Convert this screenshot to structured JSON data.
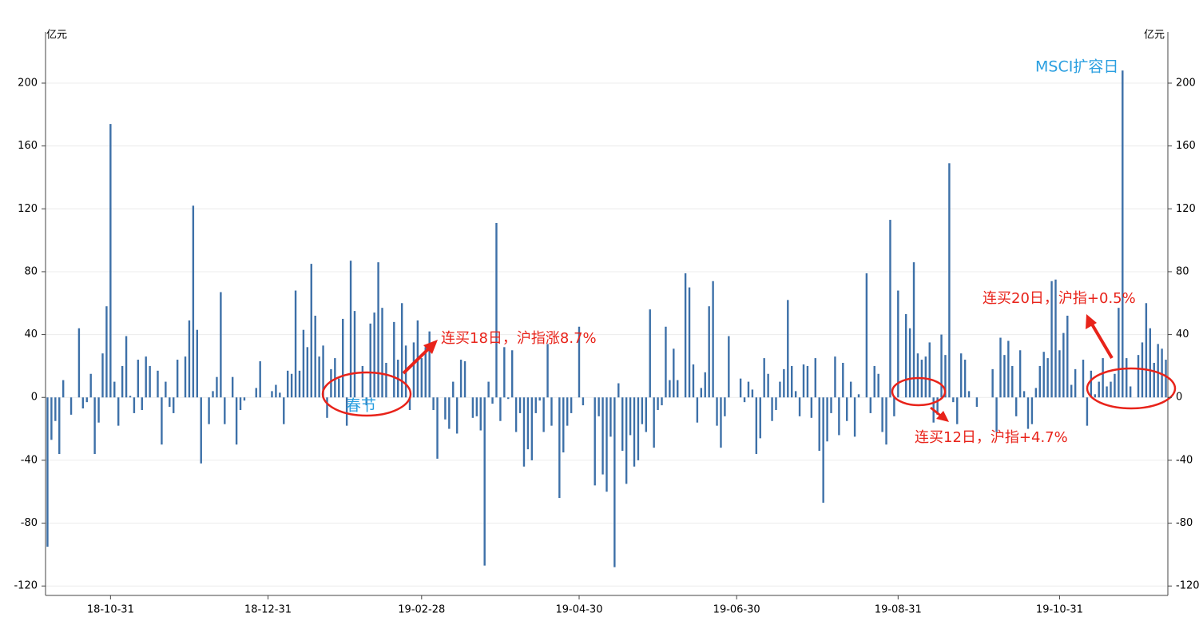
{
  "chart_data": {
    "type": "bar",
    "y_unit": "亿元",
    "color": "#3d70a8",
    "ylim": [
      -126,
      230
    ],
    "yticks": [
      -120,
      -80,
      -40,
      0,
      40,
      80,
      120,
      160,
      200
    ],
    "grid": true,
    "categories": [
      null,
      null,
      null,
      null,
      null,
      null,
      null,
      null,
      null,
      null,
      null,
      null,
      null,
      null,
      null,
      null,
      "18-10-31",
      null,
      null,
      null,
      null,
      null,
      null,
      null,
      null,
      null,
      null,
      null,
      null,
      null,
      null,
      null,
      null,
      null,
      null,
      null,
      null,
      null,
      null,
      null,
      null,
      null,
      null,
      null,
      null,
      null,
      null,
      null,
      null,
      null,
      null,
      null,
      null,
      null,
      null,
      null,
      "18-12-31",
      null,
      null,
      null,
      null,
      null,
      null,
      null,
      null,
      null,
      null,
      null,
      null,
      null,
      null,
      null,
      null,
      null,
      null,
      null,
      null,
      null,
      null,
      null,
      null,
      null,
      null,
      null,
      null,
      null,
      null,
      null,
      null,
      null,
      null,
      null,
      null,
      null,
      null,
      "19-02-28",
      null,
      null,
      null,
      null,
      null,
      null,
      null,
      null,
      null,
      null,
      null,
      null,
      null,
      null,
      null,
      null,
      null,
      null,
      null,
      null,
      null,
      null,
      null,
      null,
      null,
      null,
      null,
      null,
      null,
      null,
      null,
      null,
      null,
      null,
      null,
      null,
      null,
      null,
      null,
      "19-04-30",
      null,
      null,
      null,
      null,
      null,
      null,
      null,
      null,
      null,
      null,
      null,
      null,
      null,
      null,
      null,
      null,
      null,
      null,
      null,
      null,
      null,
      null,
      null,
      null,
      null,
      null,
      null,
      null,
      null,
      null,
      null,
      null,
      null,
      null,
      null,
      null,
      null,
      null,
      null,
      "19-06-30",
      null,
      null,
      null,
      null,
      null,
      null,
      null,
      null,
      null,
      null,
      null,
      null,
      null,
      null,
      null,
      null,
      null,
      null,
      null,
      null,
      null,
      null,
      null,
      null,
      null,
      null,
      null,
      null,
      null,
      null,
      null,
      null,
      null,
      null,
      null,
      null,
      null,
      null,
      null,
      null,
      "19-08-31",
      null,
      null,
      null,
      null,
      null,
      null,
      null,
      null,
      null,
      null,
      null,
      null,
      null,
      null,
      null,
      null,
      null,
      null,
      null,
      null,
      null,
      null,
      null,
      null,
      null,
      null,
      null,
      null,
      null,
      null,
      null,
      null,
      null,
      null,
      null,
      null,
      null,
      null,
      null,
      null,
      "19-10-31",
      null,
      null,
      null,
      null,
      null,
      null,
      null,
      null,
      null,
      null,
      null,
      null,
      null,
      null,
      null,
      null,
      null,
      null,
      null,
      null,
      null,
      null,
      null,
      null,
      null,
      null,
      null
    ],
    "values": [
      -95,
      -27,
      -15,
      -36,
      11,
      0,
      -11,
      0,
      44,
      -7,
      -3,
      15,
      -36,
      -16,
      28,
      58,
      174,
      10,
      -18,
      20,
      39,
      1,
      -10,
      24,
      -8,
      26,
      20,
      0,
      17,
      -30,
      10,
      -6,
      -10,
      24,
      0,
      26,
      49,
      122,
      43,
      -42,
      0,
      -17,
      4,
      13,
      67,
      -17,
      0,
      13,
      -30,
      -8,
      -2,
      0,
      0,
      6,
      23,
      0,
      0,
      4,
      8,
      3,
      -17,
      17,
      15,
      68,
      17,
      43,
      32,
      85,
      52,
      26,
      33,
      -13,
      18,
      25,
      12,
      50,
      -18,
      87,
      55,
      0,
      20,
      -5,
      47,
      54,
      86,
      57,
      22,
      0,
      48,
      24,
      60,
      33,
      -8,
      35,
      49,
      25,
      32,
      42,
      -8,
      -39,
      0,
      -14,
      -20,
      10,
      -23,
      24,
      23,
      0,
      -13,
      -12,
      -21,
      -107,
      10,
      -4,
      111,
      -15,
      32,
      -1,
      30,
      -22,
      -10,
      -44,
      -33,
      -40,
      -10,
      -2,
      -22,
      34,
      -18,
      0,
      -64,
      -35,
      -18,
      -10,
      0,
      45,
      -5,
      0,
      0,
      -56,
      -12,
      -49,
      -60,
      -25,
      -108,
      9,
      -34,
      -55,
      -24,
      -44,
      -40,
      -17,
      -22,
      56,
      -32,
      -8,
      -5,
      45,
      11,
      31,
      11,
      0,
      79,
      70,
      21,
      -16,
      6,
      16,
      58,
      74,
      -18,
      -32,
      -12,
      39,
      0,
      0,
      12,
      -3,
      10,
      5,
      -36,
      -26,
      25,
      15,
      -15,
      -8,
      10,
      18,
      62,
      20,
      4,
      -12,
      21,
      20,
      -13,
      25,
      -34,
      -67,
      -28,
      -10,
      26,
      -24,
      22,
      -15,
      10,
      -25,
      2,
      0,
      79,
      -10,
      20,
      15,
      -22,
      -30,
      113,
      -12,
      68,
      0,
      53,
      44,
      86,
      28,
      24,
      26,
      35,
      -16,
      -11,
      40,
      27,
      149,
      -3,
      -17,
      28,
      24,
      4,
      0,
      -6,
      0,
      0,
      0,
      18,
      -22,
      38,
      27,
      36,
      20,
      -12,
      30,
      4,
      -20,
      -17,
      6,
      20,
      29,
      25,
      74,
      75,
      30,
      41,
      52,
      8,
      18,
      0,
      24,
      -18,
      17,
      2,
      10,
      25,
      7,
      10,
      15,
      57,
      208,
      25,
      7,
      0,
      27,
      35,
      60,
      44,
      22,
      34,
      31,
      24
    ],
    "annotations": [
      "MSCI扩容日",
      "春节",
      "连买18日，沪指涨8.7%",
      "连买12日，沪指+4.7%",
      "连买20日，沪指+0.5%"
    ]
  }
}
